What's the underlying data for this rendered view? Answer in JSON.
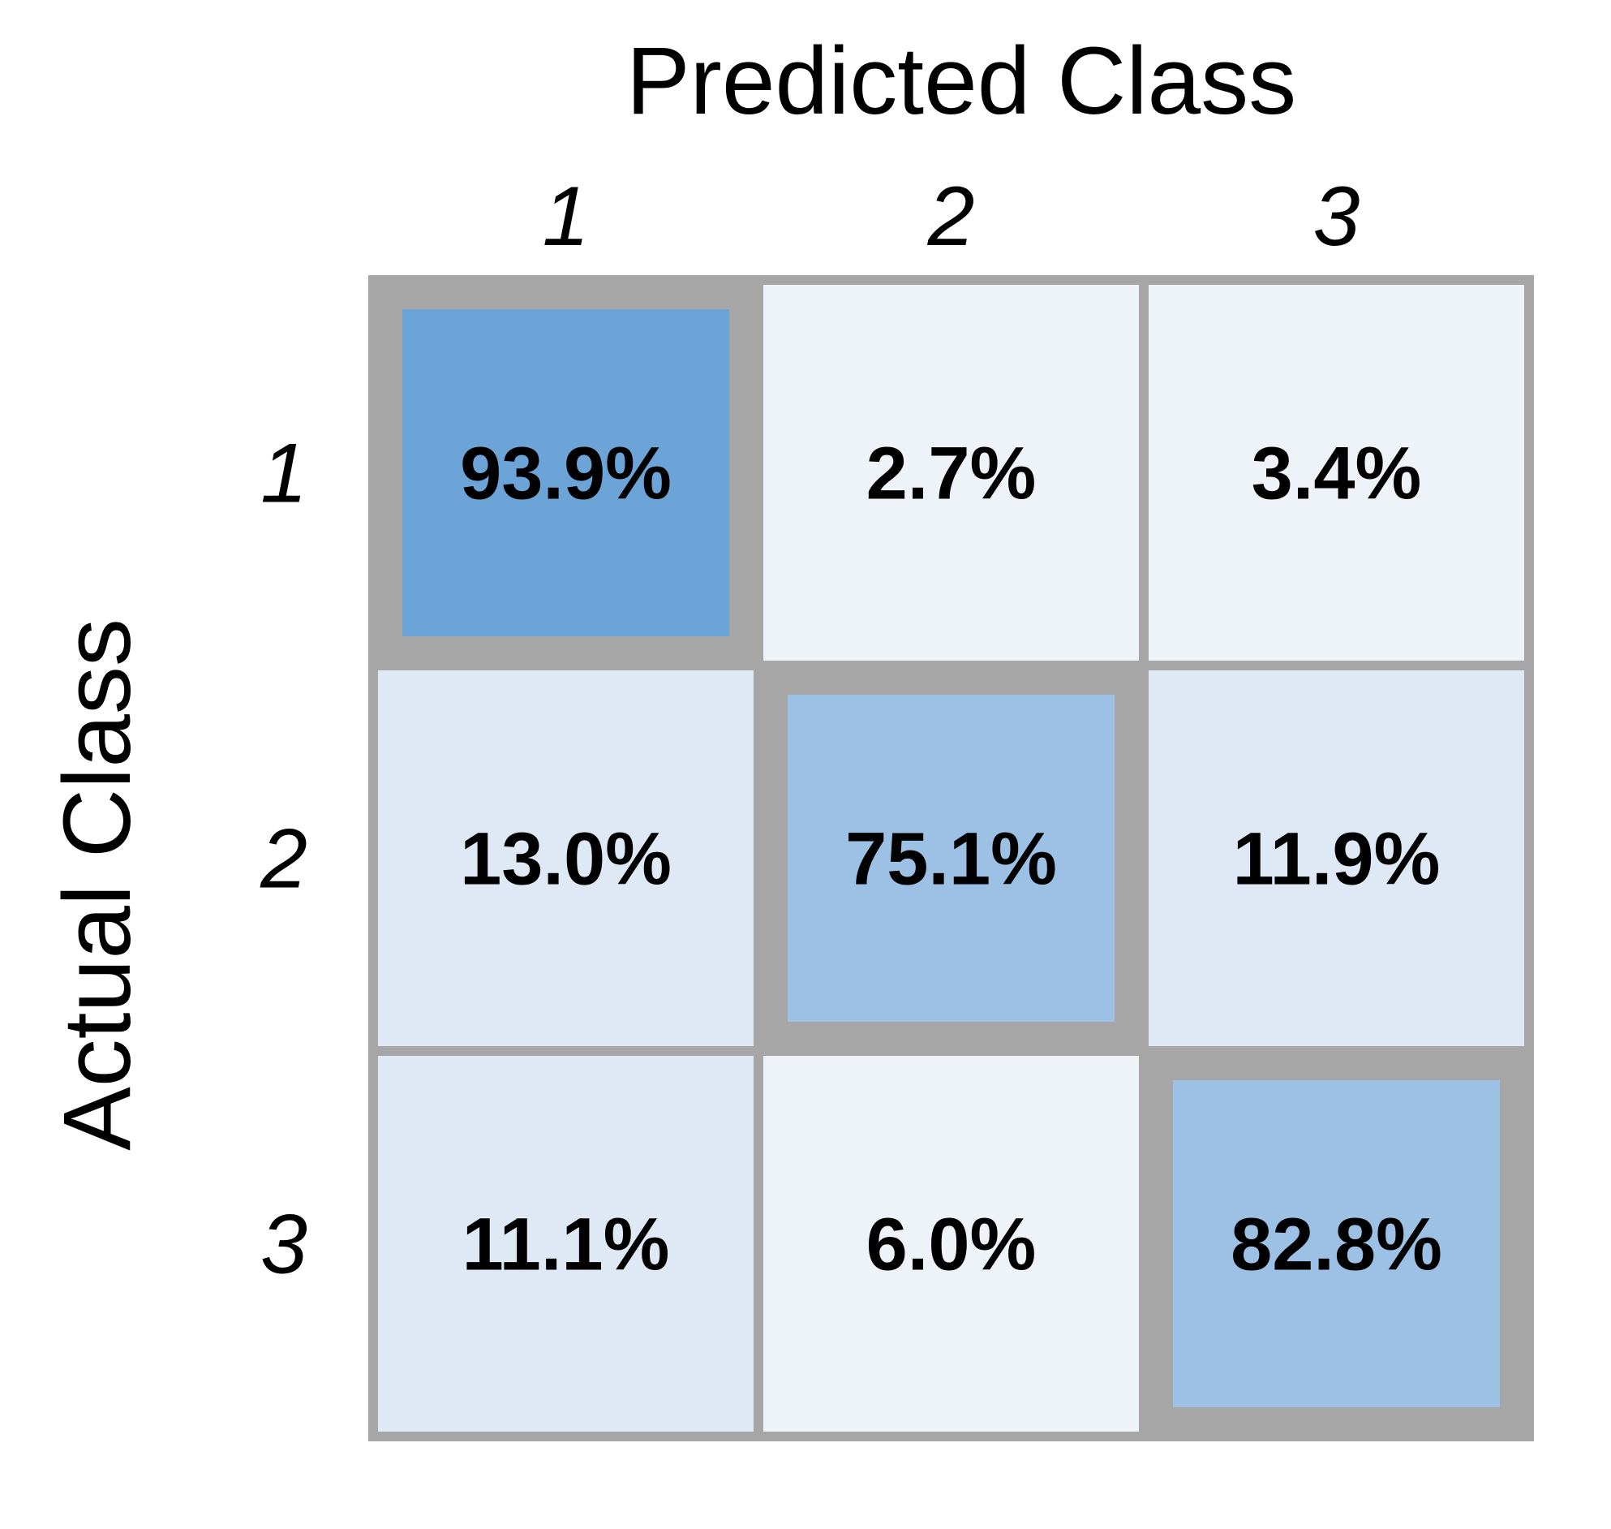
{
  "chart_data": {
    "type": "heatmap",
    "title": "",
    "xlabel": "Predicted Class",
    "ylabel": "Actual Class",
    "x_categories": [
      "1",
      "2",
      "3"
    ],
    "y_categories": [
      "1",
      "2",
      "3"
    ],
    "values": [
      [
        93.9,
        2.7,
        3.4
      ],
      [
        13.0,
        75.1,
        11.9
      ],
      [
        11.1,
        6.0,
        82.8
      ]
    ],
    "value_labels": [
      [
        "93.9%",
        "2.7%",
        "3.4%"
      ],
      [
        "13.0%",
        "75.1%",
        "11.9%"
      ],
      [
        "11.1%",
        "6.0%",
        "82.8%"
      ]
    ],
    "value_range": [
      0,
      100
    ],
    "colors": {
      "cell_fills": [
        [
          "#6CA4D7",
          "#EEF3FA",
          "#EEF3FA"
        ],
        [
          "#DEE9F5",
          "#9DC1E5",
          "#DEE9F5"
        ],
        [
          "#DEE9F5",
          "#EEF3FA",
          "#9DC1E5"
        ]
      ],
      "grid_border": "#A6A6A6",
      "diagonal_border": "#A6A6A6",
      "text": "#000000"
    },
    "diagonal_highlighted": true,
    "legend": "none",
    "grid": true
  }
}
